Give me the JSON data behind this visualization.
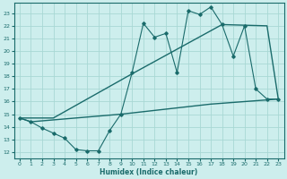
{
  "xlabel": "Humidex (Indice chaleur)",
  "xlim": [
    -0.5,
    23.5
  ],
  "ylim": [
    11.5,
    23.8
  ],
  "yticks": [
    12,
    13,
    14,
    15,
    16,
    17,
    18,
    19,
    20,
    21,
    22,
    23
  ],
  "xticks": [
    0,
    1,
    2,
    3,
    4,
    5,
    6,
    7,
    8,
    9,
    10,
    11,
    12,
    13,
    14,
    15,
    16,
    17,
    18,
    19,
    20,
    21,
    22,
    23
  ],
  "bg_color": "#cdeeed",
  "grid_color": "#a8d8d4",
  "line_color": "#1a6b6b",
  "line1_x": [
    0,
    1,
    2,
    3,
    4,
    5,
    6,
    7,
    8,
    9,
    10,
    11,
    12,
    13,
    14,
    15,
    16,
    17,
    18,
    19,
    20,
    21,
    22,
    23
  ],
  "line1_y": [
    14.7,
    14.4,
    13.9,
    13.5,
    13.1,
    12.2,
    12.1,
    12.1,
    13.7,
    15.0,
    18.3,
    22.2,
    21.1,
    21.4,
    18.3,
    23.2,
    22.9,
    23.5,
    22.1,
    19.6,
    22.0,
    17.0,
    16.2,
    16.2
  ],
  "line2_x": [
    0,
    3,
    10,
    18,
    22,
    23
  ],
  "line2_y": [
    14.7,
    14.7,
    18.2,
    22.1,
    22.0,
    16.2
  ],
  "line3_x": [
    0,
    1,
    9,
    17,
    23
  ],
  "line3_y": [
    14.7,
    14.4,
    15.0,
    15.8,
    16.2
  ],
  "tick_fontsize": 4.5,
  "xlabel_fontsize": 5.5
}
